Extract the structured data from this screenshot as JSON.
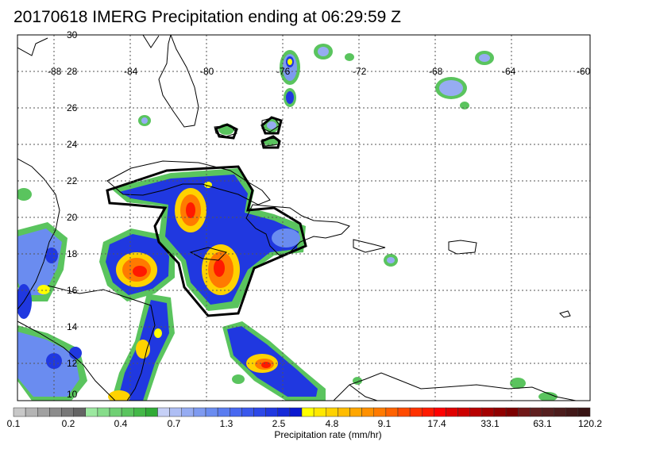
{
  "title": "20170618 IMERG Precipitation ending at 06:29:59 Z",
  "lat_labels": [
    "30",
    "28",
    "26",
    "24",
    "22",
    "20",
    "18",
    "16",
    "14",
    "12",
    "10"
  ],
  "lon_labels": [
    "-88",
    "-84",
    "-80",
    "-76",
    "-72",
    "-68",
    "-64",
    "-60"
  ],
  "colorbar": {
    "label": "Precipitation rate (mm/hr)",
    "ticks": [
      "0.1",
      "0.2",
      "0.4",
      "0.7",
      "1.3",
      "2.5",
      "4.8",
      "9.1",
      "17.4",
      "33.1",
      "63.1",
      "120.2"
    ],
    "colors": [
      "#c8c8c8",
      "#b4b4b4",
      "#a0a0a0",
      "#8c8c8c",
      "#787878",
      "#646464",
      "#9ce8a0",
      "#86dc8a",
      "#70d074",
      "#5ac45e",
      "#44b848",
      "#30aa36",
      "#c6d0f6",
      "#aebef4",
      "#96acf2",
      "#7e9af0",
      "#6a8cf0",
      "#5a7cf0",
      "#4868f0",
      "#3a58ec",
      "#2c48e8",
      "#2038e0",
      "#1428d8",
      "#0a18d0",
      "#ffff00",
      "#ffe800",
      "#ffd200",
      "#ffbc00",
      "#ffa600",
      "#ff9000",
      "#ff7a00",
      "#ff6200",
      "#ff4a00",
      "#ff3200",
      "#ff1a00",
      "#ff0000",
      "#e00000",
      "#cc0000",
      "#b80000",
      "#a40000",
      "#900000",
      "#7c0000",
      "#701818",
      "#602020",
      "#562020",
      "#4c1c1c",
      "#421818",
      "#381414"
    ]
  }
}
